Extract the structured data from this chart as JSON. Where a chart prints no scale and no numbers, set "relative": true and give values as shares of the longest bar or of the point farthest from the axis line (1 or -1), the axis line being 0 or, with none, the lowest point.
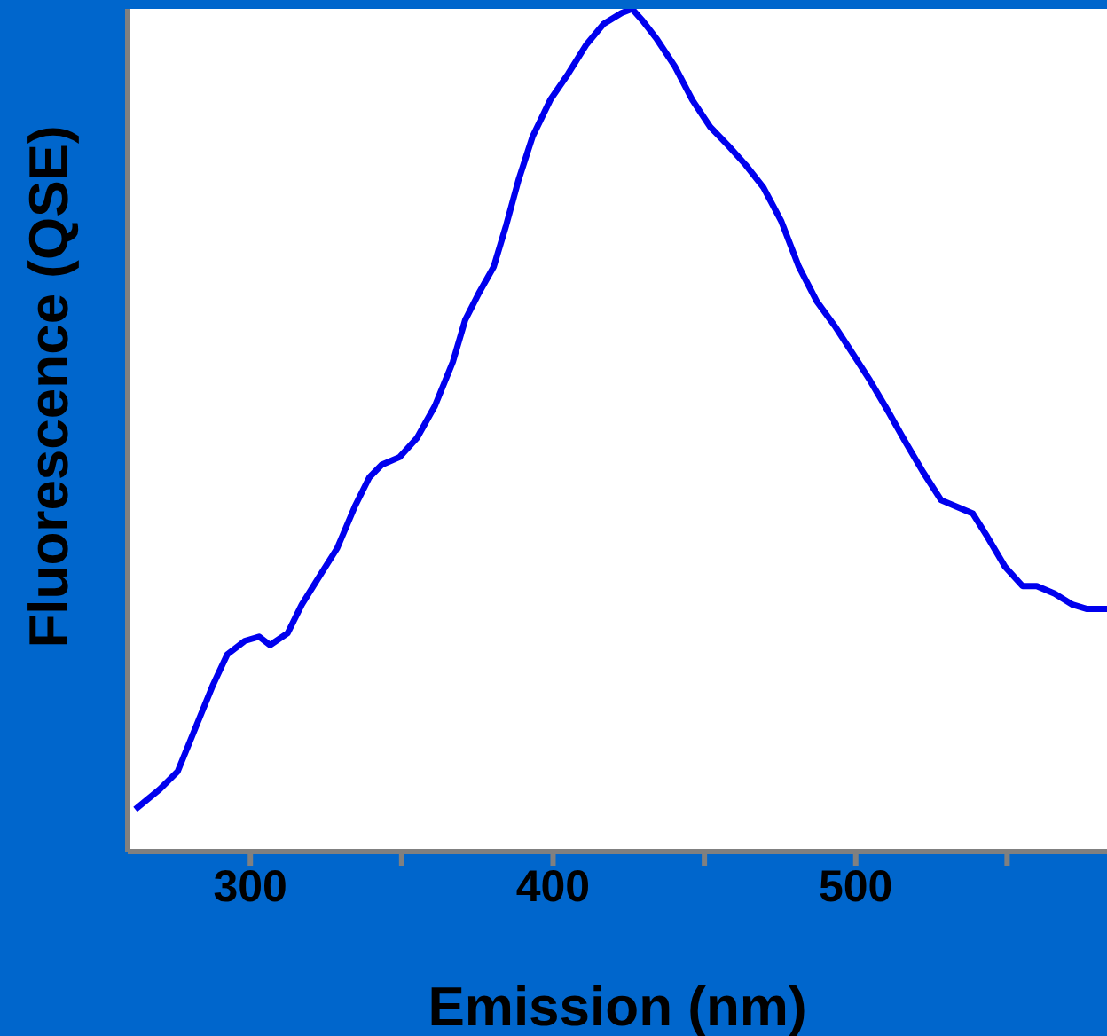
{
  "chart_data": {
    "type": "line",
    "xlabel": "Emission (nm)",
    "ylabel": "Fluorescence (QSE)",
    "relative": true,
    "xlim": [
      259.5,
      583
    ],
    "xticks": [
      {
        "value": 300,
        "label": "300"
      },
      {
        "value": 350,
        "label": null
      },
      {
        "value": 400,
        "label": "400"
      },
      {
        "value": 450,
        "label": null
      },
      {
        "value": 500,
        "label": "500"
      },
      {
        "value": 550,
        "label": null
      }
    ],
    "marker": "none",
    "line_style": "solid",
    "series": [
      {
        "color": "#0000ee",
        "x": [
          262,
          270.1,
          276,
          281.8,
          287.7,
          292.4,
          298.2,
          302.9,
          306.5,
          312.3,
          317,
          322.9,
          328.7,
          334.6,
          339.3,
          343.4,
          349.3,
          355.1,
          361,
          366.9,
          371,
          375.7,
          380.4,
          384.5,
          388.6,
          393.3,
          399.1,
          405,
          410.9,
          416.7,
          422.6,
          426.1,
          429.6,
          434.3,
          440.2,
          446,
          451.9,
          457.8,
          463.6,
          469.5,
          475.4,
          481.2,
          487.1,
          493,
          498.8,
          504.7,
          510.6,
          516.4,
          522.3,
          528.2,
          532.8,
          538.7,
          543.4,
          549.3,
          555.1,
          559.8,
          565.7,
          571.6,
          576.2,
          583
        ],
        "values": [
          0.05,
          0.074,
          0.095,
          0.146,
          0.198,
          0.234,
          0.25,
          0.255,
          0.245,
          0.259,
          0.293,
          0.327,
          0.36,
          0.41,
          0.444,
          0.459,
          0.468,
          0.491,
          0.529,
          0.581,
          0.631,
          0.664,
          0.694,
          0.743,
          0.797,
          0.849,
          0.892,
          0.923,
          0.957,
          0.982,
          0.995,
          1.0,
          0.986,
          0.964,
          0.932,
          0.892,
          0.86,
          0.838,
          0.815,
          0.788,
          0.748,
          0.694,
          0.653,
          0.624,
          0.592,
          0.559,
          0.523,
          0.486,
          0.45,
          0.417,
          0.41,
          0.401,
          0.374,
          0.338,
          0.315,
          0.315,
          0.306,
          0.293,
          0.288,
          0.288
        ]
      }
    ]
  }
}
